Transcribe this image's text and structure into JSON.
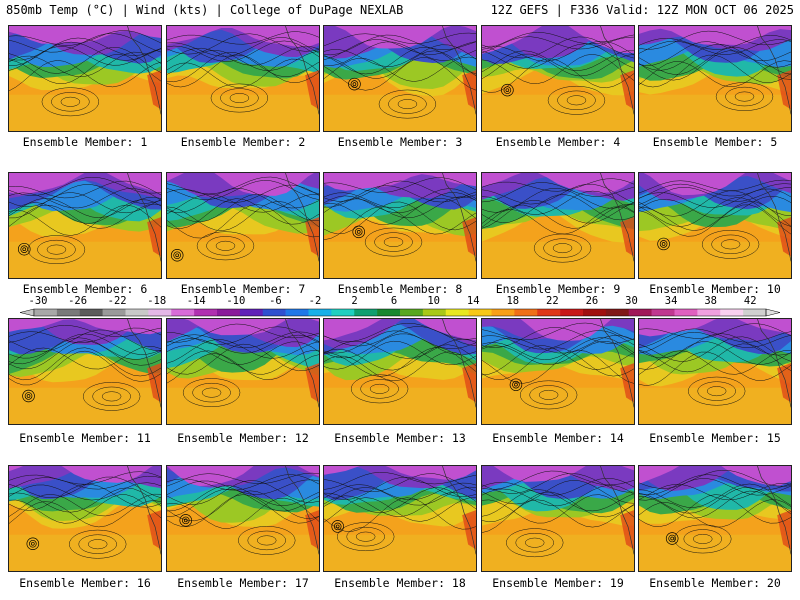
{
  "header": {
    "title": "850mb Temp (°C) | Wind (kts) | College of DuPage NEXLAB",
    "run_info": "12Z GEFS | F336 Valid: 12Z MON OCT 06 2025"
  },
  "members": [
    {
      "label": "Ensemble Member: 1",
      "low": false
    },
    {
      "label": "Ensemble Member: 2",
      "low": false
    },
    {
      "label": "Ensemble Member: 3",
      "low": true
    },
    {
      "label": "Ensemble Member: 4",
      "low": true
    },
    {
      "label": "Ensemble Member: 5",
      "low": false
    },
    {
      "label": "Ensemble Member: 6",
      "low": true
    },
    {
      "label": "Ensemble Member: 7",
      "low": true
    },
    {
      "label": "Ensemble Member: 8",
      "low": true
    },
    {
      "label": "Ensemble Member: 9",
      "low": false
    },
    {
      "label": "Ensemble Member: 10",
      "low": true
    },
    {
      "label": "Ensemble Member: 11",
      "low": true
    },
    {
      "label": "Ensemble Member: 12",
      "low": false
    },
    {
      "label": "Ensemble Member: 13",
      "low": false
    },
    {
      "label": "Ensemble Member: 14",
      "low": true
    },
    {
      "label": "Ensemble Member: 15",
      "low": false
    },
    {
      "label": "Ensemble Member: 16",
      "low": true
    },
    {
      "label": "Ensemble Member: 17",
      "low": true
    },
    {
      "label": "Ensemble Member: 18",
      "low": true
    },
    {
      "label": "Ensemble Member: 19",
      "low": false
    },
    {
      "label": "Ensemble Member: 20",
      "low": true
    }
  ],
  "colorbar": {
    "ticks": [
      "-30",
      "-26",
      "-22",
      "-18",
      "-14",
      "-10",
      "-6",
      "-2",
      "2",
      "6",
      "10",
      "14",
      "18",
      "22",
      "26",
      "30",
      "34",
      "38",
      "42"
    ],
    "colors": [
      "#a8a8a8",
      "#7a7a7a",
      "#5c5c5c",
      "#9a9a9a",
      "#c8c8c8",
      "#e4b8e8",
      "#d86cd8",
      "#b030b0",
      "#8a1a9a",
      "#6020b8",
      "#3050d0",
      "#2078e8",
      "#18b0e8",
      "#20d0c0",
      "#10a070",
      "#188830",
      "#58a820",
      "#a8c818",
      "#e8e820",
      "#f8c818",
      "#f8a018",
      "#f07018",
      "#e03818",
      "#c81818",
      "#a01010",
      "#801818",
      "#a01858",
      "#c03890",
      "#e060c0",
      "#f0a0e0",
      "#f8d0f0",
      "#d0d0d0"
    ]
  }
}
